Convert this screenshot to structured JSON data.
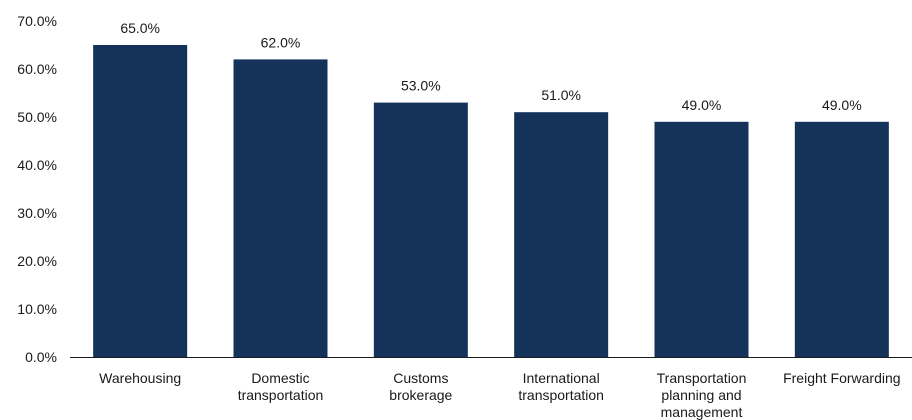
{
  "chart_data": {
    "type": "bar",
    "categories": [
      "Warehousing",
      "Domestic transportation",
      "Customs brokerage",
      "International transportation",
      "Transportation planning and management",
      "Freight Forwarding"
    ],
    "category_lines": [
      [
        "Warehousing"
      ],
      [
        "Domestic",
        "transportation"
      ],
      [
        "Customs",
        "brokerage"
      ],
      [
        "International",
        "transportation"
      ],
      [
        "Transportation",
        "planning and",
        "management"
      ],
      [
        "Freight Forwarding"
      ]
    ],
    "values": [
      65.0,
      62.0,
      53.0,
      51.0,
      49.0,
      49.0
    ],
    "data_labels": [
      "65.0%",
      "62.0%",
      "53.0%",
      "51.0%",
      "49.0%",
      "49.0%"
    ],
    "yticks": [
      "0.0%",
      "10.0%",
      "20.0%",
      "30.0%",
      "40.0%",
      "50.0%",
      "60.0%",
      "70.0%"
    ],
    "ylim": [
      0,
      70
    ],
    "title": "",
    "xlabel": "",
    "ylabel": "",
    "grid": false,
    "bar_color": "#14325a",
    "axis_color": "#1a1a1a"
  }
}
